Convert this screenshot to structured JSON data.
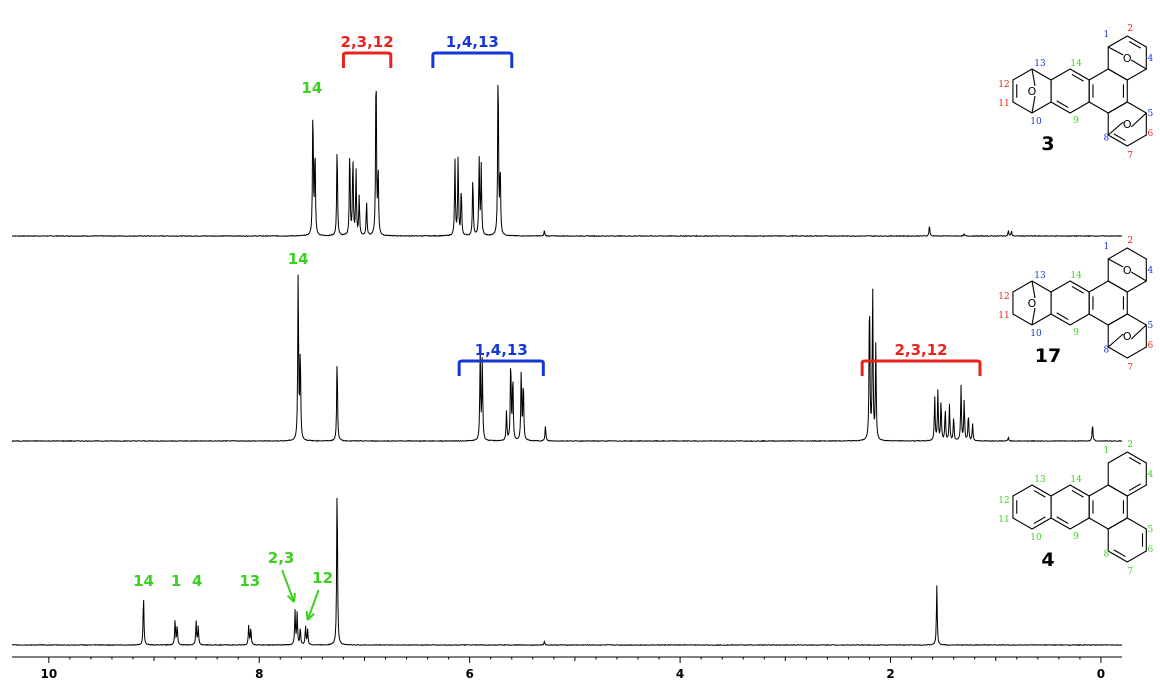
{
  "colors": {
    "red": "#e8231b",
    "blue": "#1537d8",
    "green": "#3bd11f",
    "trace": "#000000"
  },
  "chart_data": {
    "type": "line",
    "title": "",
    "xlabel": "",
    "ylabel": "",
    "x_axis": {
      "reversed": true,
      "xlim": [
        10.35,
        -0.2
      ],
      "ticks": [
        10,
        8,
        6,
        4,
        2,
        0
      ],
      "tick_labels": [
        "10",
        "8",
        "6",
        "4",
        "2",
        "0"
      ]
    },
    "grid": false,
    "series": [
      {
        "compound": "3",
        "peaks": [
          {
            "ppm": 7.49,
            "h": 0.74
          },
          {
            "ppm": 7.47,
            "h": 0.49
          },
          {
            "ppm": 7.26,
            "h": 0.52
          },
          {
            "ppm": 7.14,
            "h": 0.49
          },
          {
            "ppm": 7.11,
            "h": 0.45
          },
          {
            "ppm": 7.08,
            "h": 0.36
          },
          {
            "ppm": 7.05,
            "h": 0.22
          },
          {
            "ppm": 6.98,
            "h": 0.19
          },
          {
            "ppm": 6.89,
            "h": 0.99
          },
          {
            "ppm": 6.87,
            "h": 0.36
          },
          {
            "ppm": 6.14,
            "h": 0.42
          },
          {
            "ppm": 6.11,
            "h": 0.44
          },
          {
            "ppm": 6.08,
            "h": 0.27
          },
          {
            "ppm": 5.97,
            "h": 0.34
          },
          {
            "ppm": 5.91,
            "h": 0.43
          },
          {
            "ppm": 5.89,
            "h": 0.39
          },
          {
            "ppm": 5.73,
            "h": 0.98
          },
          {
            "ppm": 5.71,
            "h": 0.38
          },
          {
            "ppm": 5.29,
            "h": 0.03
          },
          {
            "ppm": 1.63,
            "h": 0.06
          },
          {
            "ppm": 1.3,
            "h": 0.01
          },
          {
            "ppm": 0.88,
            "h": 0.03
          },
          {
            "ppm": 0.85,
            "h": 0.025
          }
        ],
        "annotations": [
          {
            "text": "14",
            "ppm": 7.5,
            "color": "green",
            "type": "label"
          },
          {
            "text": "2,3,12",
            "from": 7.2,
            "to": 6.75,
            "color": "red",
            "type": "bracket"
          },
          {
            "text": "1,4,13",
            "from": 6.35,
            "to": 5.6,
            "color": "blue",
            "type": "bracket"
          }
        ]
      },
      {
        "compound": "17",
        "peaks": [
          {
            "ppm": 7.63,
            "h": 0.99
          },
          {
            "ppm": 7.61,
            "h": 0.52
          },
          {
            "ppm": 7.26,
            "h": 0.5
          },
          {
            "ppm": 5.9,
            "h": 0.52
          },
          {
            "ppm": 5.88,
            "h": 0.47
          },
          {
            "ppm": 5.65,
            "h": 0.17
          },
          {
            "ppm": 5.61,
            "h": 0.49
          },
          {
            "ppm": 5.59,
            "h": 0.38
          },
          {
            "ppm": 5.51,
            "h": 0.42
          },
          {
            "ppm": 5.49,
            "h": 0.35
          },
          {
            "ppm": 5.28,
            "h": 0.09
          },
          {
            "ppm": 2.2,
            "h": 0.88
          },
          {
            "ppm": 2.17,
            "h": 0.9
          },
          {
            "ppm": 2.14,
            "h": 0.55
          },
          {
            "ppm": 1.58,
            "h": 0.26
          },
          {
            "ppm": 1.55,
            "h": 0.29
          },
          {
            "ppm": 1.52,
            "h": 0.24
          },
          {
            "ppm": 1.48,
            "h": 0.19
          },
          {
            "ppm": 1.44,
            "h": 0.21
          },
          {
            "ppm": 1.4,
            "h": 0.14
          },
          {
            "ppm": 1.33,
            "h": 0.32
          },
          {
            "ppm": 1.3,
            "h": 0.24
          },
          {
            "ppm": 1.26,
            "h": 0.16
          },
          {
            "ppm": 1.22,
            "h": 0.1
          },
          {
            "ppm": 0.88,
            "h": 0.02
          },
          {
            "ppm": 0.08,
            "h": 0.1
          }
        ],
        "annotations": [
          {
            "text": "14",
            "ppm": 7.63,
            "color": "green",
            "type": "label"
          },
          {
            "text": "1,4,13",
            "from": 6.1,
            "to": 5.3,
            "color": "blue",
            "type": "bracket"
          },
          {
            "text": "2,3,12",
            "from": 2.27,
            "to": 1.15,
            "color": "red",
            "type": "bracket"
          }
        ]
      },
      {
        "compound": "4",
        "peaks": [
          {
            "ppm": 9.1,
            "h": 0.3
          },
          {
            "ppm": 8.8,
            "h": 0.15
          },
          {
            "ppm": 8.78,
            "h": 0.12
          },
          {
            "ppm": 8.6,
            "h": 0.14
          },
          {
            "ppm": 8.58,
            "h": 0.11
          },
          {
            "ppm": 8.1,
            "h": 0.12
          },
          {
            "ppm": 8.08,
            "h": 0.1
          },
          {
            "ppm": 7.66,
            "h": 0.2
          },
          {
            "ppm": 7.64,
            "h": 0.19
          },
          {
            "ppm": 7.61,
            "h": 0.1
          },
          {
            "ppm": 7.56,
            "h": 0.11
          },
          {
            "ppm": 7.54,
            "h": 0.09
          },
          {
            "ppm": 7.26,
            "h": 0.99
          },
          {
            "ppm": 5.29,
            "h": 0.02
          },
          {
            "ppm": 1.56,
            "h": 0.35
          }
        ],
        "annotations": [
          {
            "text": "14",
            "ppm": 9.1,
            "color": "green",
            "type": "label"
          },
          {
            "text": "1",
            "ppm": 8.79,
            "color": "green",
            "type": "label"
          },
          {
            "text": "4",
            "ppm": 8.59,
            "color": "green",
            "type": "label"
          },
          {
            "text": "13",
            "ppm": 8.09,
            "color": "green",
            "type": "label"
          },
          {
            "text": "2,3",
            "ppm": 7.65,
            "color": "green",
            "type": "arrow"
          },
          {
            "text": "12",
            "ppm": 7.55,
            "color": "green",
            "type": "arrow"
          }
        ]
      }
    ]
  },
  "structures": [
    {
      "compound_label": "3",
      "bridged": true,
      "double_bonds": true,
      "atom_labels": [
        {
          "n": "1",
          "c": "blue"
        },
        {
          "n": "2",
          "c": "red"
        },
        {
          "n": "4",
          "c": "blue"
        },
        {
          "n": "5",
          "c": "blue"
        },
        {
          "n": "6",
          "c": "red"
        },
        {
          "n": "7",
          "c": "red"
        },
        {
          "n": "8",
          "c": "blue"
        },
        {
          "n": "9",
          "c": "green"
        },
        {
          "n": "10",
          "c": "blue"
        },
        {
          "n": "11",
          "c": "red"
        },
        {
          "n": "12",
          "c": "red"
        },
        {
          "n": "13",
          "c": "blue"
        },
        {
          "n": "14",
          "c": "green"
        }
      ]
    },
    {
      "compound_label": "17",
      "bridged": true,
      "double_bonds": false,
      "atom_labels": [
        {
          "n": "1",
          "c": "blue"
        },
        {
          "n": "2",
          "c": "red"
        },
        {
          "n": "4",
          "c": "blue"
        },
        {
          "n": "5",
          "c": "blue"
        },
        {
          "n": "6",
          "c": "red"
        },
        {
          "n": "7",
          "c": "red"
        },
        {
          "n": "8",
          "c": "blue"
        },
        {
          "n": "9",
          "c": "green"
        },
        {
          "n": "10",
          "c": "blue"
        },
        {
          "n": "11",
          "c": "red"
        },
        {
          "n": "12",
          "c": "red"
        },
        {
          "n": "13",
          "c": "blue"
        },
        {
          "n": "14",
          "c": "green"
        }
      ]
    },
    {
      "compound_label": "4",
      "bridged": false,
      "double_bonds": true,
      "atom_labels": [
        {
          "n": "1",
          "c": "green"
        },
        {
          "n": "2",
          "c": "green"
        },
        {
          "n": "4",
          "c": "green"
        },
        {
          "n": "5",
          "c": "green"
        },
        {
          "n": "6",
          "c": "green"
        },
        {
          "n": "7",
          "c": "green"
        },
        {
          "n": "8",
          "c": "green"
        },
        {
          "n": "9",
          "c": "green"
        },
        {
          "n": "10",
          "c": "green"
        },
        {
          "n": "11",
          "c": "green"
        },
        {
          "n": "12",
          "c": "green"
        },
        {
          "n": "13",
          "c": "green"
        },
        {
          "n": "14",
          "c": "green"
        }
      ]
    }
  ]
}
